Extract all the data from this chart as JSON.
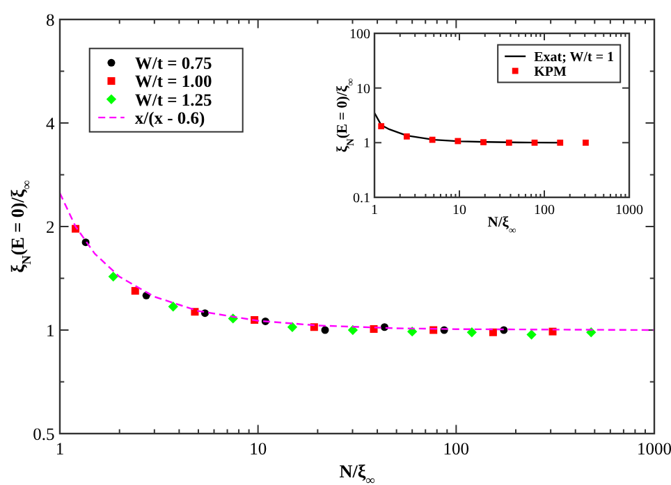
{
  "chart_data": [
    {
      "type": "scatter",
      "xlabel": "N/ξ$_{∞}$",
      "ylabel": "ξ$_{N}$(E = 0)/ξ$_{∞}$",
      "log": "xy",
      "xlim": [
        1,
        1000
      ],
      "ylim": [
        0.5,
        8
      ],
      "xticks": [
        1,
        {
          "value": 2,
          "label": null
        },
        {
          "value": 3,
          "label": null
        },
        {
          "value": 4,
          "label": null
        },
        {
          "value": 5,
          "label": null
        },
        {
          "value": 6,
          "label": null
        },
        {
          "value": 7,
          "label": null
        },
        {
          "value": 8,
          "label": null
        },
        {
          "value": 9,
          "label": null
        },
        10,
        {
          "value": 20,
          "label": null
        },
        {
          "value": 30,
          "label": null
        },
        {
          "value": 40,
          "label": null
        },
        {
          "value": 50,
          "label": null
        },
        {
          "value": 60,
          "label": null
        },
        {
          "value": 70,
          "label": null
        },
        {
          "value": 80,
          "label": null
        },
        {
          "value": 90,
          "label": null
        },
        100,
        {
          "value": 200,
          "label": null
        },
        {
          "value": 300,
          "label": null
        },
        {
          "value": 400,
          "label": null
        },
        {
          "value": 500,
          "label": null
        },
        {
          "value": 600,
          "label": null
        },
        {
          "value": 700,
          "label": null
        },
        {
          "value": 800,
          "label": null
        },
        {
          "value": 900,
          "label": null
        },
        1000
      ],
      "yticks": [
        0.5,
        {
          "value": 0.707,
          "label": null
        },
        1,
        {
          "value": 1.414,
          "label": null
        },
        2,
        {
          "value": 2.828,
          "label": null
        },
        4,
        {
          "value": 5.657,
          "label": null
        },
        8
      ],
      "legend": "top left",
      "grid": false,
      "series": [
        {
          "name": "W/t = 0.75",
          "marker": "circle",
          "color": "#000000",
          "x": [
            1.35,
            2.73,
            5.4,
            10.9,
            21.8,
            43.5,
            87,
            174
          ],
          "values": [
            1.8,
            1.26,
            1.12,
            1.06,
            1.0,
            1.02,
            1.0,
            1.0
          ]
        },
        {
          "name": "W/t = 1.00",
          "marker": "square",
          "color": "#ff0000",
          "x": [
            1.2,
            2.4,
            4.8,
            9.6,
            19.2,
            38.4,
            76.8,
            153.6,
            307
          ],
          "values": [
            1.97,
            1.3,
            1.13,
            1.07,
            1.02,
            1.007,
            1.0,
            0.985,
            0.99
          ]
        },
        {
          "name": "W/t = 1.25",
          "marker": "diamond",
          "color": "#00ff00",
          "x": [
            1.86,
            3.73,
            7.48,
            14.9,
            30.1,
            60,
            120,
            240,
            480
          ],
          "values": [
            1.43,
            1.17,
            1.08,
            1.02,
            1.0,
            0.99,
            0.985,
            0.97,
            0.985
          ]
        },
        {
          "name": "x/(x - 0.6)",
          "type": "line",
          "marker": "none",
          "line_style": "dashed",
          "color": "#ff00ff",
          "x": [
            1,
            1.2,
            1.5,
            2,
            3,
            5,
            10,
            20,
            50,
            100,
            1000
          ],
          "values": [
            2.5,
            2,
            1.667,
            1.429,
            1.25,
            1.136,
            1.064,
            1.031,
            1.012,
            1.006,
            1.0
          ]
        }
      ]
    },
    {
      "type": "scatter",
      "xlabel": "N/ξ$_{∞}$",
      "ylabel": "ξ$_{N}$(E = 0)/ξ$_{∞}$",
      "log": "xy",
      "xlim": [
        1,
        1000
      ],
      "ylim": [
        0.1,
        100
      ],
      "xticks": [
        1,
        {
          "value": 2,
          "label": null
        },
        {
          "value": 3,
          "label": null
        },
        {
          "value": 4,
          "label": null
        },
        {
          "value": 5,
          "label": null
        },
        {
          "value": 6,
          "label": null
        },
        {
          "value": 7,
          "label": null
        },
        {
          "value": 8,
          "label": null
        },
        {
          "value": 9,
          "label": null
        },
        10,
        {
          "value": 20,
          "label": null
        },
        {
          "value": 30,
          "label": null
        },
        {
          "value": 40,
          "label": null
        },
        {
          "value": 50,
          "label": null
        },
        {
          "value": 60,
          "label": null
        },
        {
          "value": 70,
          "label": null
        },
        {
          "value": 80,
          "label": null
        },
        {
          "value": 90,
          "label": null
        },
        100,
        {
          "value": 200,
          "label": null
        },
        {
          "value": 300,
          "label": null
        },
        {
          "value": 400,
          "label": null
        },
        {
          "value": 500,
          "label": null
        },
        {
          "value": 600,
          "label": null
        },
        {
          "value": 700,
          "label": null
        },
        {
          "value": 800,
          "label": null
        },
        {
          "value": 900,
          "label": null
        },
        1000
      ],
      "yticks": [
        0.1,
        1,
        10,
        100
      ],
      "legend": "top right",
      "grid": false,
      "series": [
        {
          "name": "Exat; W/t = 1",
          "type": "line",
          "marker": "none",
          "line_style": "solid",
          "color": "#000000",
          "x": [
            1,
            1.2,
            1.5,
            2.4,
            5,
            10,
            20,
            50,
            160
          ],
          "values": [
            3.5,
            2.1,
            1.75,
            1.35,
            1.13,
            1.06,
            1.03,
            1.01,
            1.0
          ]
        },
        {
          "name": "KPM",
          "marker": "square",
          "color": "#ff0000",
          "x": [
            1.2,
            2.4,
            4.8,
            9.6,
            19.2,
            38.4,
            76.8,
            153.6,
            307
          ],
          "values": [
            2,
            1.3,
            1.13,
            1.07,
            1.02,
            1.0,
            1.0,
            1.0,
            1.0
          ]
        }
      ]
    }
  ]
}
